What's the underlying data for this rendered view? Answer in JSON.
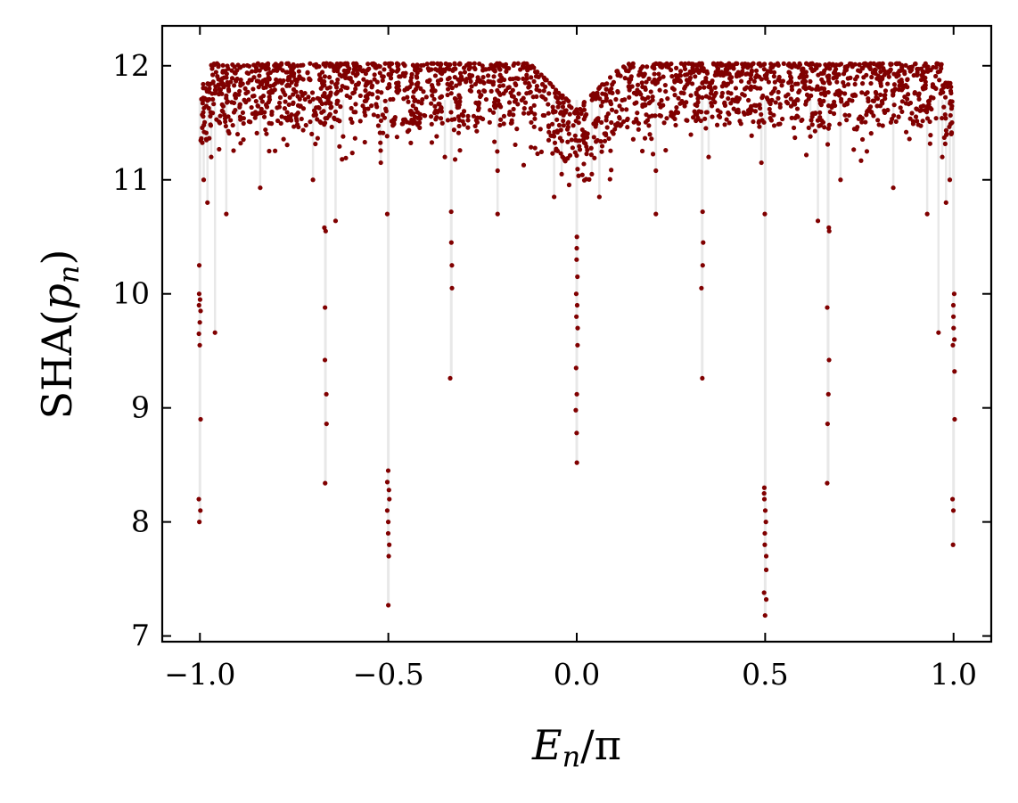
{
  "chart_data": {
    "type": "scatter",
    "title": "",
    "xlabel": "E_n/π",
    "ylabel": "SHA(p_n)",
    "xlim": [
      -1.1,
      1.1
    ],
    "ylim": [
      6.95,
      12.35
    ],
    "xticks": [
      -1.0,
      -0.5,
      0.0,
      0.5,
      1.0
    ],
    "xtick_labels": [
      "−1.0",
      "−0.5",
      "0.0",
      "0.5",
      "1.0"
    ],
    "yticks": [
      7,
      8,
      9,
      10,
      11,
      12
    ],
    "ytick_labels": [
      "7",
      "8",
      "9",
      "10",
      "11",
      "12"
    ],
    "grid": false,
    "legend": "none",
    "marker_color": "#800000",
    "stem_color": "#e8e8e8",
    "dense_band": {
      "x_range": [
        -1.0,
        1.0
      ],
      "y_range": [
        11.6,
        12.05
      ],
      "note_points_estimated": true
    },
    "dips": [
      {
        "x": -1.0,
        "y": [
          9.55,
          9.65,
          9.75,
          9.85,
          9.9,
          9.95,
          10.0,
          10.25,
          8.1,
          8.0,
          8.2,
          8.9
        ]
      },
      {
        "x": -0.667,
        "y": [
          9.88,
          9.42,
          9.12,
          8.86,
          8.34,
          10.58,
          10.55
        ]
      },
      {
        "x": -0.5,
        "y": [
          8.45,
          8.35,
          8.28,
          8.2,
          8.1,
          8.0,
          7.9,
          7.8,
          7.7,
          7.27,
          10.7
        ]
      },
      {
        "x": -0.333,
        "y": [
          10.72,
          10.45,
          10.25,
          10.05,
          9.26
        ]
      },
      {
        "x": 0.0,
        "y": [
          10.5,
          10.4,
          10.3,
          10.15,
          10.0,
          9.9,
          9.8,
          9.7,
          9.55,
          9.35,
          9.12,
          8.98,
          8.78,
          8.52
        ]
      },
      {
        "x": 0.333,
        "y": [
          10.72,
          10.45,
          10.25,
          10.05,
          9.26
        ]
      },
      {
        "x": 0.5,
        "y": [
          8.3,
          8.25,
          8.2,
          8.1,
          8.0,
          7.9,
          7.8,
          7.7,
          7.58,
          7.38,
          7.32,
          7.18,
          10.7
        ]
      },
      {
        "x": 0.667,
        "y": [
          9.88,
          9.42,
          9.12,
          8.86,
          8.34,
          10.58,
          10.55
        ]
      },
      {
        "x": 1.0,
        "y": [
          10.0,
          9.9,
          9.8,
          9.7,
          9.6,
          9.55,
          9.32,
          8.1,
          7.8,
          8.2,
          8.9
        ]
      }
    ],
    "scattered_points": [
      [
        -0.99,
        11.0
      ],
      [
        -0.98,
        10.8
      ],
      [
        -0.97,
        11.2
      ],
      [
        -0.96,
        9.66
      ],
      [
        -0.93,
        10.7
      ],
      [
        -0.9,
        11.4
      ],
      [
        -0.84,
        10.93
      ],
      [
        -0.7,
        11.0
      ],
      [
        -0.64,
        10.64
      ],
      [
        -0.62,
        11.38
      ],
      [
        -0.52,
        11.15
      ],
      [
        -0.35,
        11.2
      ],
      [
        -0.21,
        10.7
      ],
      [
        -0.21,
        11.08
      ],
      [
        -0.06,
        10.85
      ],
      [
        -0.04,
        11.05
      ],
      [
        0.04,
        11.05
      ],
      [
        0.06,
        10.85
      ],
      [
        0.21,
        10.7
      ],
      [
        0.21,
        11.08
      ],
      [
        0.35,
        11.2
      ],
      [
        0.49,
        11.15
      ],
      [
        0.62,
        11.38
      ],
      [
        0.64,
        10.64
      ],
      [
        0.7,
        11.0
      ],
      [
        0.84,
        10.93
      ],
      [
        0.93,
        10.7
      ],
      [
        0.96,
        9.66
      ],
      [
        0.97,
        11.2
      ],
      [
        0.98,
        10.8
      ],
      [
        0.99,
        11.0
      ]
    ]
  }
}
